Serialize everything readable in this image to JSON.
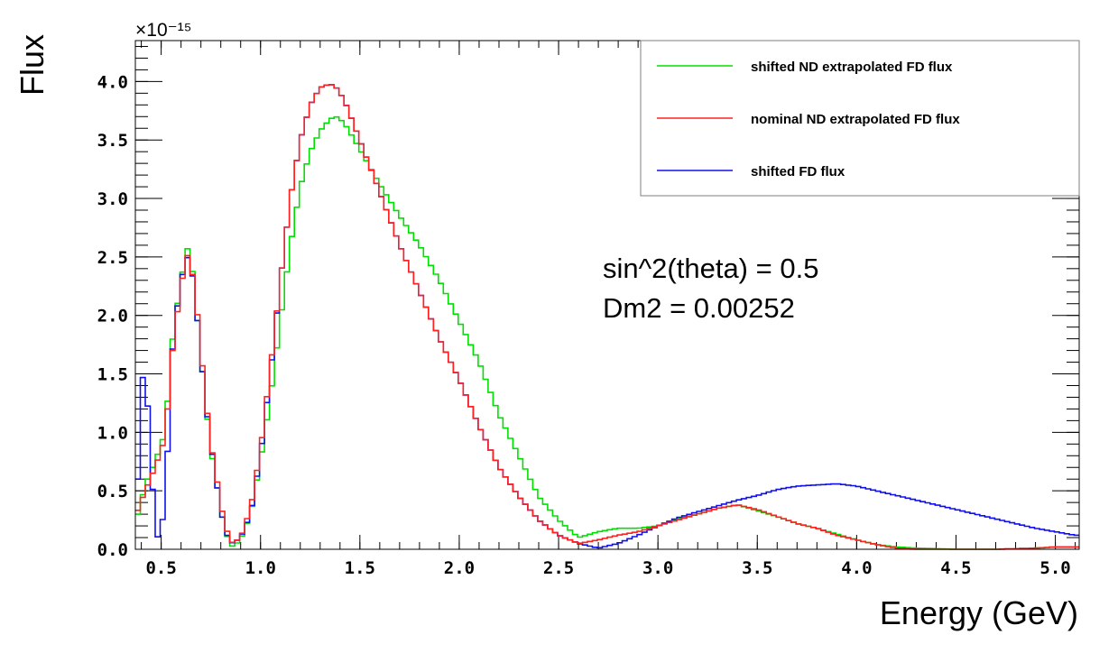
{
  "chart_data": {
    "type": "line",
    "title": "",
    "xlabel": "Energy (GeV)",
    "ylabel": "Flux",
    "y_exponent_label": "×10⁻¹⁵",
    "xlim": [
      0.37,
      5.12
    ],
    "ylim": [
      0,
      4.35
    ],
    "x_ticks": [
      "0.5",
      "1.0",
      "1.5",
      "2.0",
      "2.5",
      "3.0",
      "3.5",
      "4.0",
      "4.5",
      "5.0"
    ],
    "y_ticks": [
      "0.0",
      "0.5",
      "1.0",
      "1.5",
      "2.0",
      "2.5",
      "3.0",
      "3.5",
      "4.0"
    ],
    "histogram_style": "step",
    "legend_position": "top-right",
    "annotations": [
      "sin^2(theta) = 0.5",
      "Dm2 = 0.00252"
    ],
    "series": [
      {
        "name": "shifted ND extrapolated FD flux",
        "color": "#00e000",
        "points": [
          [
            0.375,
            0.25
          ],
          [
            0.42,
            0.55
          ],
          [
            0.47,
            0.75
          ],
          [
            0.52,
            1.0
          ],
          [
            0.56,
            1.85
          ],
          [
            0.6,
            2.3
          ],
          [
            0.63,
            2.58
          ],
          [
            0.65,
            2.5
          ],
          [
            0.68,
            2.0
          ],
          [
            0.72,
            1.3
          ],
          [
            0.75,
            0.85
          ],
          [
            0.78,
            0.55
          ],
          [
            0.82,
            0.15
          ],
          [
            0.86,
            0.02
          ],
          [
            0.9,
            0.08
          ],
          [
            0.95,
            0.3
          ],
          [
            1.0,
            0.75
          ],
          [
            1.05,
            1.3
          ],
          [
            1.1,
            1.95
          ],
          [
            1.15,
            2.6
          ],
          [
            1.2,
            3.1
          ],
          [
            1.25,
            3.4
          ],
          [
            1.3,
            3.58
          ],
          [
            1.35,
            3.68
          ],
          [
            1.38,
            3.7
          ],
          [
            1.42,
            3.65
          ],
          [
            1.5,
            3.42
          ],
          [
            1.6,
            3.12
          ],
          [
            1.7,
            2.85
          ],
          [
            1.8,
            2.6
          ],
          [
            1.9,
            2.3
          ],
          [
            2.0,
            1.95
          ],
          [
            2.1,
            1.6
          ],
          [
            2.2,
            1.15
          ],
          [
            2.3,
            0.8
          ],
          [
            2.4,
            0.45
          ],
          [
            2.5,
            0.25
          ],
          [
            2.6,
            0.1
          ],
          [
            2.7,
            0.15
          ],
          [
            2.8,
            0.18
          ],
          [
            2.9,
            0.18
          ],
          [
            3.0,
            0.2
          ],
          [
            3.1,
            0.26
          ],
          [
            3.2,
            0.3
          ],
          [
            3.3,
            0.35
          ],
          [
            3.4,
            0.38
          ],
          [
            3.5,
            0.33
          ],
          [
            3.6,
            0.28
          ],
          [
            3.7,
            0.22
          ],
          [
            3.8,
            0.18
          ],
          [
            3.9,
            0.13
          ],
          [
            4.0,
            0.08
          ],
          [
            4.1,
            0.04
          ],
          [
            4.2,
            0.02
          ],
          [
            4.3,
            0.01
          ],
          [
            4.5,
            0.0
          ],
          [
            4.7,
            0.0
          ],
          [
            4.9,
            0.01
          ],
          [
            5.0,
            0.02
          ],
          [
            5.1,
            0.02
          ]
        ]
      },
      {
        "name": "nominal ND extrapolated FD flux",
        "color": "#ff2020",
        "points": [
          [
            0.375,
            0.3
          ],
          [
            0.42,
            0.5
          ],
          [
            0.47,
            0.7
          ],
          [
            0.52,
            0.95
          ],
          [
            0.56,
            1.75
          ],
          [
            0.6,
            2.25
          ],
          [
            0.63,
            2.52
          ],
          [
            0.65,
            2.45
          ],
          [
            0.68,
            2.05
          ],
          [
            0.72,
            1.35
          ],
          [
            0.75,
            0.9
          ],
          [
            0.78,
            0.6
          ],
          [
            0.82,
            0.2
          ],
          [
            0.86,
            0.05
          ],
          [
            0.9,
            0.1
          ],
          [
            0.95,
            0.35
          ],
          [
            1.0,
            0.85
          ],
          [
            1.05,
            1.55
          ],
          [
            1.1,
            2.3
          ],
          [
            1.15,
            3.0
          ],
          [
            1.2,
            3.5
          ],
          [
            1.25,
            3.8
          ],
          [
            1.3,
            3.95
          ],
          [
            1.35,
            3.98
          ],
          [
            1.38,
            3.95
          ],
          [
            1.42,
            3.85
          ],
          [
            1.5,
            3.5
          ],
          [
            1.6,
            3.05
          ],
          [
            1.7,
            2.6
          ],
          [
            1.8,
            2.2
          ],
          [
            1.9,
            1.8
          ],
          [
            2.0,
            1.45
          ],
          [
            2.1,
            1.05
          ],
          [
            2.2,
            0.7
          ],
          [
            2.3,
            0.45
          ],
          [
            2.4,
            0.25
          ],
          [
            2.5,
            0.12
          ],
          [
            2.6,
            0.05
          ],
          [
            2.7,
            0.08
          ],
          [
            2.8,
            0.12
          ],
          [
            2.9,
            0.15
          ],
          [
            3.0,
            0.2
          ],
          [
            3.1,
            0.25
          ],
          [
            3.2,
            0.3
          ],
          [
            3.3,
            0.35
          ],
          [
            3.4,
            0.38
          ],
          [
            3.5,
            0.34
          ],
          [
            3.6,
            0.28
          ],
          [
            3.7,
            0.22
          ],
          [
            3.8,
            0.18
          ],
          [
            3.9,
            0.12
          ],
          [
            4.0,
            0.08
          ],
          [
            4.1,
            0.04
          ],
          [
            4.2,
            0.01
          ],
          [
            4.3,
            0.0
          ],
          [
            4.5,
            0.0
          ],
          [
            4.7,
            0.0
          ],
          [
            4.9,
            0.01
          ],
          [
            5.0,
            0.02
          ],
          [
            5.1,
            0.02
          ]
        ]
      },
      {
        "name": "shifted FD flux",
        "color": "#1010ee",
        "points": [
          [
            0.375,
            0.3
          ],
          [
            0.39,
            0.9
          ],
          [
            0.41,
            1.55
          ],
          [
            0.43,
            1.3
          ],
          [
            0.45,
            0.7
          ],
          [
            0.47,
            0.2
          ],
          [
            0.49,
            0.05
          ],
          [
            0.52,
            0.4
          ],
          [
            0.56,
            1.8
          ],
          [
            0.6,
            2.3
          ],
          [
            0.63,
            2.5
          ],
          [
            0.65,
            2.45
          ],
          [
            0.68,
            2.0
          ],
          [
            0.72,
            1.3
          ],
          [
            0.75,
            0.9
          ],
          [
            0.78,
            0.55
          ],
          [
            0.82,
            0.15
          ],
          [
            0.86,
            0.05
          ],
          [
            0.9,
            0.1
          ],
          [
            0.95,
            0.3
          ],
          [
            1.0,
            0.8
          ],
          [
            1.05,
            1.5
          ],
          [
            1.1,
            2.3
          ],
          [
            1.15,
            3.0
          ],
          [
            1.2,
            3.5
          ],
          [
            1.25,
            3.8
          ],
          [
            1.3,
            3.95
          ],
          [
            1.35,
            3.98
          ],
          [
            1.38,
            3.95
          ],
          [
            1.42,
            3.85
          ],
          [
            1.5,
            3.5
          ],
          [
            1.6,
            3.05
          ],
          [
            1.7,
            2.6
          ],
          [
            1.8,
            2.2
          ],
          [
            1.9,
            1.8
          ],
          [
            2.0,
            1.45
          ],
          [
            2.1,
            1.05
          ],
          [
            2.2,
            0.7
          ],
          [
            2.3,
            0.45
          ],
          [
            2.4,
            0.25
          ],
          [
            2.5,
            0.12
          ],
          [
            2.6,
            0.05
          ],
          [
            2.7,
            0.01
          ],
          [
            2.8,
            0.05
          ],
          [
            2.9,
            0.12
          ],
          [
            3.0,
            0.2
          ],
          [
            3.1,
            0.27
          ],
          [
            3.2,
            0.32
          ],
          [
            3.3,
            0.37
          ],
          [
            3.4,
            0.42
          ],
          [
            3.5,
            0.46
          ],
          [
            3.6,
            0.51
          ],
          [
            3.7,
            0.54
          ],
          [
            3.8,
            0.55
          ],
          [
            3.9,
            0.56
          ],
          [
            4.0,
            0.54
          ],
          [
            4.1,
            0.5
          ],
          [
            4.2,
            0.46
          ],
          [
            4.3,
            0.42
          ],
          [
            4.4,
            0.38
          ],
          [
            4.5,
            0.34
          ],
          [
            4.6,
            0.3
          ],
          [
            4.7,
            0.26
          ],
          [
            4.8,
            0.22
          ],
          [
            4.9,
            0.18
          ],
          [
            5.0,
            0.15
          ],
          [
            5.1,
            0.12
          ]
        ]
      }
    ]
  }
}
